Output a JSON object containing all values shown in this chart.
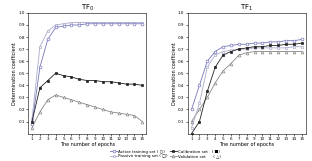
{
  "title_left": "TF$_0$",
  "title_right": "TF$_1$",
  "xlabel": "The number of epochs",
  "ylabel": "Determination coefficient",
  "x": [
    1,
    2,
    3,
    4,
    5,
    6,
    7,
    8,
    9,
    10,
    11,
    12,
    13,
    14,
    15
  ],
  "left": {
    "active": [
      0.08,
      0.55,
      0.78,
      0.88,
      0.89,
      0.9,
      0.9,
      0.91,
      0.91,
      0.91,
      0.91,
      0.91,
      0.91,
      0.91,
      0.91
    ],
    "passive": [
      0.12,
      0.72,
      0.85,
      0.9,
      0.91,
      0.92,
      0.92,
      0.92,
      0.92,
      0.92,
      0.92,
      0.92,
      0.92,
      0.92,
      0.92
    ],
    "calib": [
      0.1,
      0.38,
      0.44,
      0.5,
      0.48,
      0.47,
      0.45,
      0.44,
      0.44,
      0.43,
      0.43,
      0.42,
      0.41,
      0.41,
      0.4
    ],
    "valid": [
      0.05,
      0.18,
      0.28,
      0.32,
      0.3,
      0.28,
      0.26,
      0.24,
      0.22,
      0.2,
      0.18,
      0.17,
      0.16,
      0.15,
      0.1
    ]
  },
  "right": {
    "active": [
      0.2,
      0.4,
      0.6,
      0.68,
      0.72,
      0.73,
      0.74,
      0.74,
      0.75,
      0.75,
      0.76,
      0.76,
      0.77,
      0.77,
      0.78
    ],
    "passive": [
      0.05,
      0.25,
      0.55,
      0.65,
      0.68,
      0.69,
      0.7,
      0.7,
      0.71,
      0.71,
      0.71,
      0.71,
      0.71,
      0.72,
      0.72
    ],
    "calib": [
      0.0,
      0.1,
      0.35,
      0.55,
      0.65,
      0.68,
      0.7,
      0.71,
      0.72,
      0.72,
      0.73,
      0.73,
      0.74,
      0.74,
      0.75
    ],
    "valid": [
      0.1,
      0.2,
      0.3,
      0.42,
      0.52,
      0.58,
      0.65,
      0.67,
      0.68,
      0.68,
      0.68,
      0.68,
      0.68,
      0.68,
      0.68
    ]
  },
  "colors": {
    "active": "#7777bb",
    "passive": "#aaaacc",
    "calib": "#222222",
    "valid": "#888888"
  },
  "ylim": [
    0.0,
    1.0
  ],
  "yticks": [
    0.1,
    0.2,
    0.3,
    0.4,
    0.5,
    0.6,
    0.7,
    0.8,
    0.9,
    1.0
  ],
  "xticks": [
    1,
    2,
    3,
    4,
    5,
    6,
    7,
    8,
    9,
    10,
    11,
    12,
    13,
    14,
    15
  ],
  "legend_labels": [
    "Active training set ( ○)",
    "Passive training set ( □)",
    "Calibration set",
    "Validation set"
  ]
}
